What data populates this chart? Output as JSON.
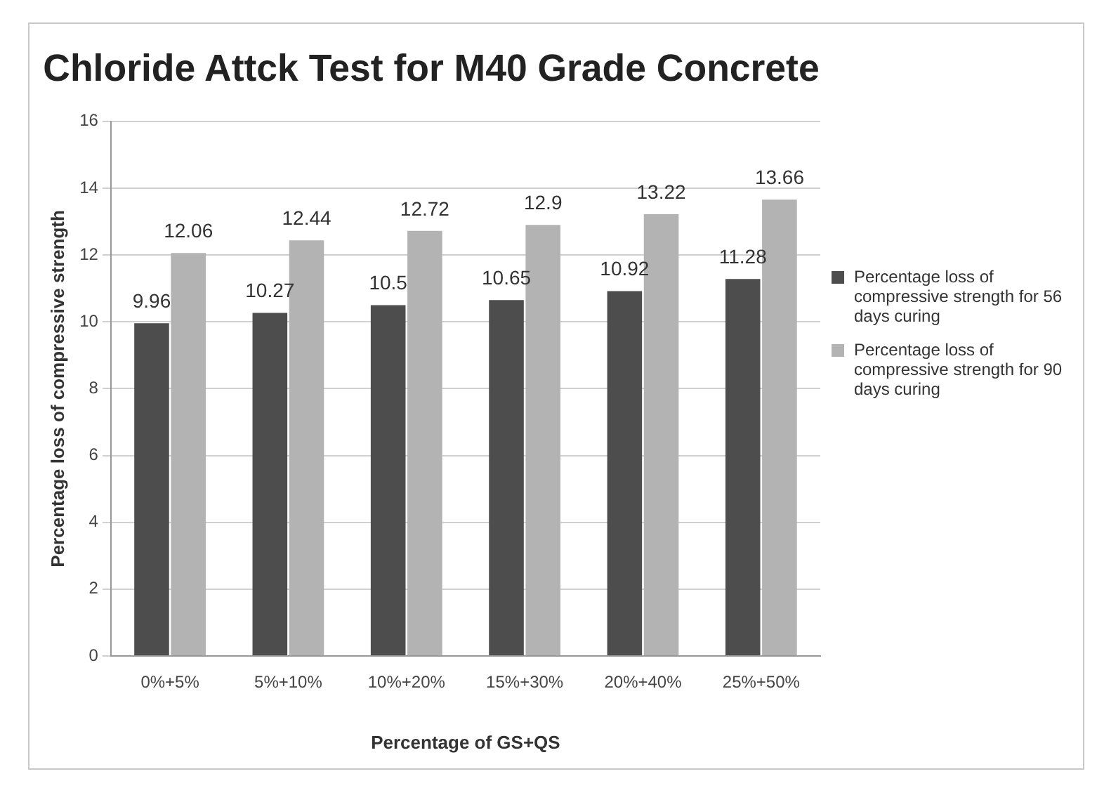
{
  "chart_data": {
    "type": "bar",
    "title": "Chloride Attck Test for M40 Grade Concrete",
    "xlabel": "Percentage of GS+QS",
    "ylabel": "Percentage loss of compressive strength",
    "categories": [
      "0%+5%",
      "5%+10%",
      "10%+20%",
      "15%+30%",
      "20%+40%",
      "25%+50%"
    ],
    "series": [
      {
        "name": "Percentage loss of compressive strength for 56 days curing",
        "color": "#4d4d4d",
        "values": [
          9.96,
          10.27,
          10.5,
          10.65,
          10.92,
          11.28
        ]
      },
      {
        "name": "Percentage loss of compressive strength for 90 days curing",
        "color": "#b3b3b3",
        "values": [
          12.06,
          12.44,
          12.72,
          12.9,
          13.22,
          13.66
        ]
      }
    ],
    "ylim": [
      0,
      16
    ],
    "yticks": [
      0,
      2,
      4,
      6,
      8,
      10,
      12,
      14,
      16
    ],
    "grid": "y",
    "legend": "right",
    "data_labels": true
  }
}
